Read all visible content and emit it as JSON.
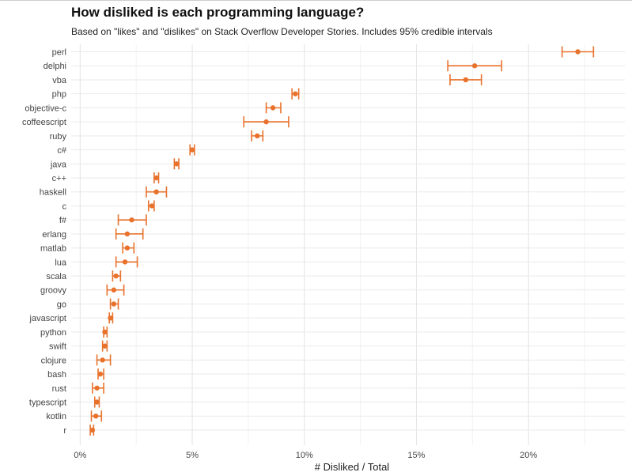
{
  "chart_data": {
    "type": "scatter",
    "subtype": "dot-with-error-bars",
    "title": "How disliked is each programming language?",
    "subtitle": "Based on \"likes\" and \"dislikes\" on Stack Overflow Developer Stories. Includes 95% credible intervals",
    "xlabel": "# Disliked / Total",
    "ylabel": "",
    "xlim": [
      -0.4,
      24.3
    ],
    "x_ticks": [
      0,
      5,
      10,
      15,
      20
    ],
    "x_tick_labels": [
      "0%",
      "5%",
      "10%",
      "15%",
      "20%"
    ],
    "grid": true,
    "color": "#e8722c",
    "categories": [
      "perl",
      "delphi",
      "vba",
      "php",
      "objective-c",
      "coffeescript",
      "ruby",
      "c#",
      "java",
      "c++",
      "haskell",
      "c",
      "f#",
      "erlang",
      "matlab",
      "lua",
      "scala",
      "groovy",
      "go",
      "javascript",
      "python",
      "swift",
      "clojure",
      "bash",
      "rust",
      "typescript",
      "kotlin",
      "r"
    ],
    "series": [
      {
        "values": [
          22.2,
          17.6,
          17.2,
          9.6,
          8.6,
          8.3,
          7.9,
          5.0,
          4.3,
          3.4,
          3.4,
          3.2,
          2.3,
          2.1,
          2.1,
          2.0,
          1.6,
          1.5,
          1.5,
          1.35,
          1.1,
          1.1,
          1.0,
          0.9,
          0.75,
          0.75,
          0.7,
          0.55
        ],
        "lower": [
          21.5,
          16.4,
          16.5,
          9.45,
          8.3,
          7.3,
          7.65,
          4.9,
          4.2,
          3.3,
          2.95,
          3.05,
          1.7,
          1.6,
          1.9,
          1.6,
          1.45,
          1.2,
          1.35,
          1.3,
          1.05,
          1.0,
          0.75,
          0.8,
          0.55,
          0.65,
          0.5,
          0.45
        ],
        "upper": [
          22.9,
          18.8,
          17.9,
          9.75,
          8.95,
          9.3,
          8.15,
          5.1,
          4.4,
          3.5,
          3.85,
          3.3,
          2.95,
          2.8,
          2.4,
          2.55,
          1.8,
          1.95,
          1.7,
          1.45,
          1.2,
          1.2,
          1.35,
          1.05,
          1.05,
          0.85,
          0.95,
          0.6
        ]
      }
    ]
  }
}
